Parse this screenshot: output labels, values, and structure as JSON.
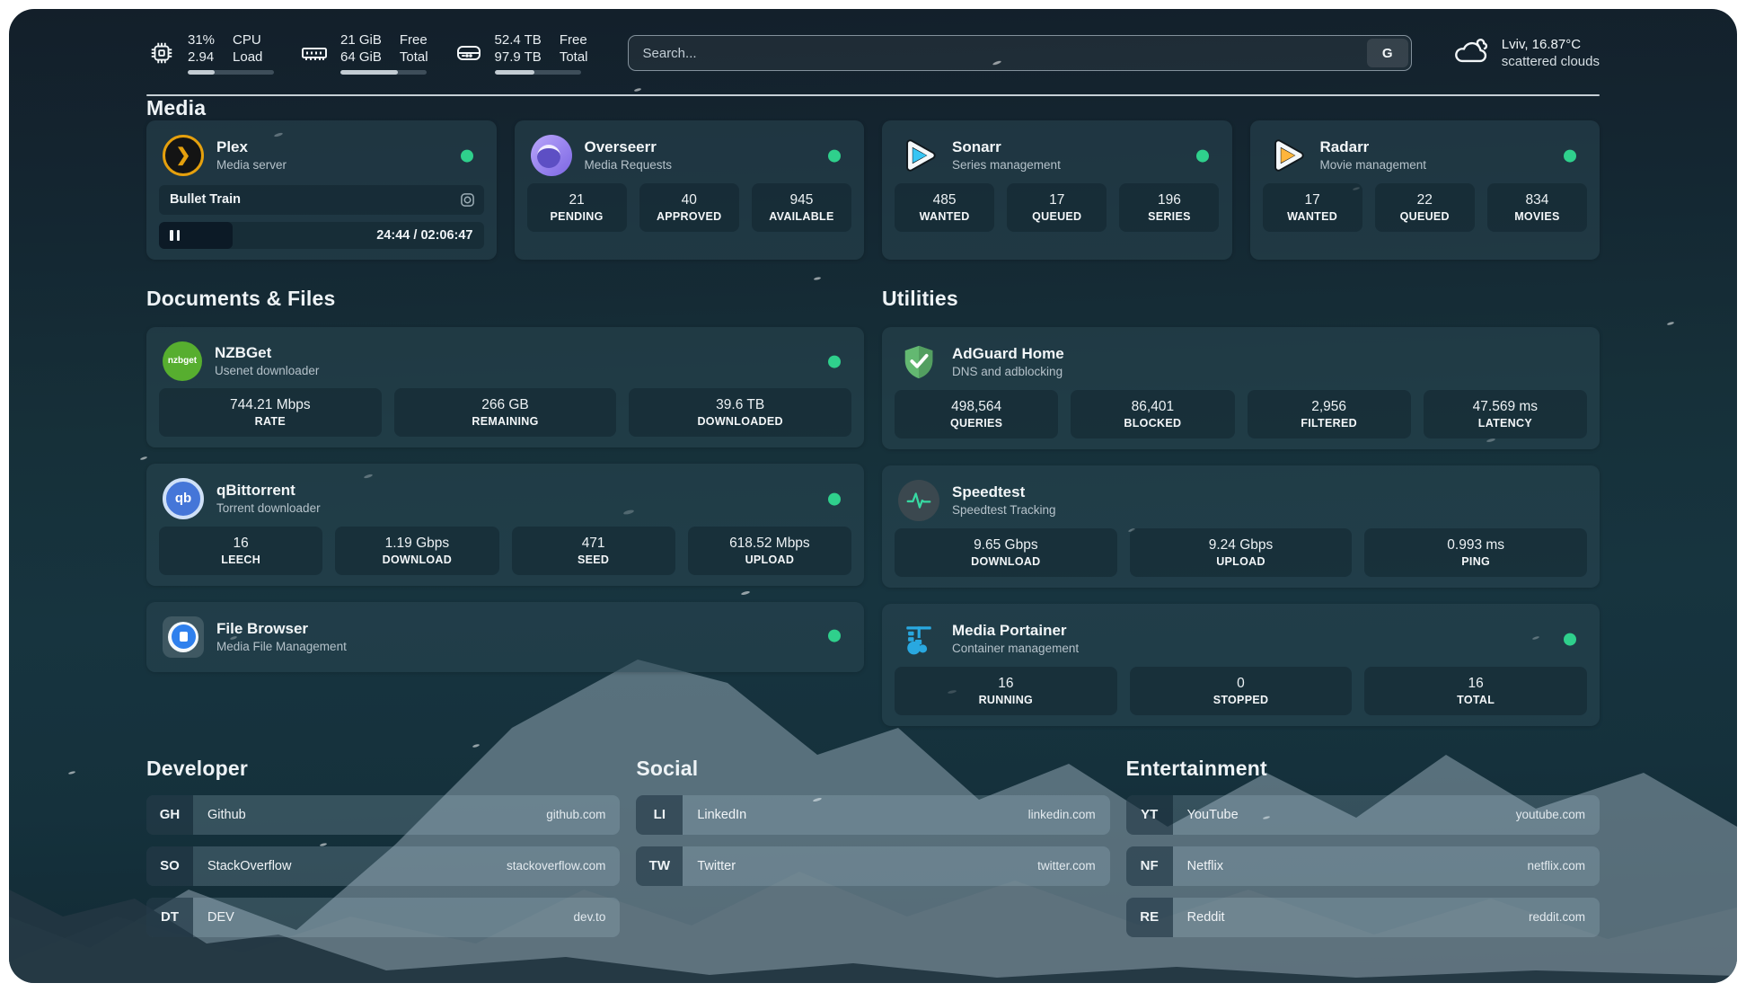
{
  "topbar": {
    "cpu": {
      "values": [
        "31%",
        "2.94"
      ],
      "labels": [
        "CPU",
        "Load"
      ],
      "progress": 31
    },
    "memory": {
      "values": [
        "21 GiB",
        "64 GiB"
      ],
      "labels": [
        "Free",
        "Total"
      ],
      "progress": 67
    },
    "disk": {
      "values": [
        "52.4 TB",
        "97.9 TB"
      ],
      "labels": [
        "Free",
        "Total"
      ],
      "progress": 46
    },
    "search": {
      "placeholder": "Search...",
      "button_label": "G"
    },
    "weather": {
      "headline": "Lviv, 16.87°C",
      "condition": "scattered clouds"
    }
  },
  "sections": {
    "media": "Media",
    "documents": "Documents & Files",
    "utilities": "Utilities",
    "developer": "Developer",
    "social": "Social",
    "entertainment": "Entertainment"
  },
  "services": {
    "plex": {
      "name": "Plex",
      "subtitle": "Media server",
      "now_playing": {
        "title": "Bullet Train",
        "time": "24:44 / 02:06:47",
        "progress_percent": 19.5
      }
    },
    "overseerr": {
      "name": "Overseerr",
      "subtitle": "Media Requests",
      "stats": [
        {
          "value": "21",
          "label": "PENDING"
        },
        {
          "value": "40",
          "label": "APPROVED"
        },
        {
          "value": "945",
          "label": "AVAILABLE"
        }
      ]
    },
    "sonarr": {
      "name": "Sonarr",
      "subtitle": "Series management",
      "stats": [
        {
          "value": "485",
          "label": "WANTED"
        },
        {
          "value": "17",
          "label": "QUEUED"
        },
        {
          "value": "196",
          "label": "SERIES"
        }
      ]
    },
    "radarr": {
      "name": "Radarr",
      "subtitle": "Movie management",
      "stats": [
        {
          "value": "17",
          "label": "WANTED"
        },
        {
          "value": "22",
          "label": "QUEUED"
        },
        {
          "value": "834",
          "label": "MOVIES"
        }
      ]
    },
    "nzbget": {
      "name": "NZBGet",
      "subtitle": "Usenet downloader",
      "icon_text": "nzbget",
      "stats": [
        {
          "value": "744.21 Mbps",
          "label": "RATE"
        },
        {
          "value": "266 GB",
          "label": "REMAINING"
        },
        {
          "value": "39.6 TB",
          "label": "DOWNLOADED"
        }
      ]
    },
    "qbittorrent": {
      "name": "qBittorrent",
      "subtitle": "Torrent downloader",
      "icon_text": "qb",
      "stats": [
        {
          "value": "16",
          "label": "LEECH"
        },
        {
          "value": "1.19 Gbps",
          "label": "DOWNLOAD"
        },
        {
          "value": "471",
          "label": "SEED"
        },
        {
          "value": "618.52 Mbps",
          "label": "UPLOAD"
        }
      ]
    },
    "filebrowser": {
      "name": "File Browser",
      "subtitle": "Media File Management"
    },
    "adguard": {
      "name": "AdGuard Home",
      "subtitle": "DNS and adblocking",
      "stats": [
        {
          "value": "498,564",
          "label": "QUERIES"
        },
        {
          "value": "86,401",
          "label": "BLOCKED"
        },
        {
          "value": "2,956",
          "label": "FILTERED"
        },
        {
          "value": "47.569 ms",
          "label": "LATENCY"
        }
      ]
    },
    "speedtest": {
      "name": "Speedtest",
      "subtitle": "Speedtest Tracking",
      "stats": [
        {
          "value": "9.65 Gbps",
          "label": "DOWNLOAD"
        },
        {
          "value": "9.24 Gbps",
          "label": "UPLOAD"
        },
        {
          "value": "0.993 ms",
          "label": "PING"
        }
      ]
    },
    "portainer": {
      "name": "Media Portainer",
      "subtitle": "Container management",
      "stats": [
        {
          "value": "16",
          "label": "RUNNING"
        },
        {
          "value": "0",
          "label": "STOPPED"
        },
        {
          "value": "16",
          "label": "TOTAL"
        }
      ]
    }
  },
  "bookmarks": {
    "developer": [
      {
        "abbr": "GH",
        "name": "Github",
        "domain": "github.com"
      },
      {
        "abbr": "SO",
        "name": "StackOverflow",
        "domain": "stackoverflow.com"
      },
      {
        "abbr": "DT",
        "name": "DEV",
        "domain": "dev.to"
      }
    ],
    "social": [
      {
        "abbr": "LI",
        "name": "LinkedIn",
        "domain": "linkedin.com"
      },
      {
        "abbr": "TW",
        "name": "Twitter",
        "domain": "twitter.com"
      }
    ],
    "entertainment": [
      {
        "abbr": "YT",
        "name": "YouTube",
        "domain": "youtube.com"
      },
      {
        "abbr": "NF",
        "name": "Netflix",
        "domain": "netflix.com"
      },
      {
        "abbr": "RE",
        "name": "Reddit",
        "domain": "reddit.com"
      }
    ]
  },
  "colors": {
    "online_dot": "#2fd08c",
    "plex_accent": "#e5a00d",
    "sonarr_accent": "#35c5f4",
    "radarr_accent": "#ffb53c"
  }
}
